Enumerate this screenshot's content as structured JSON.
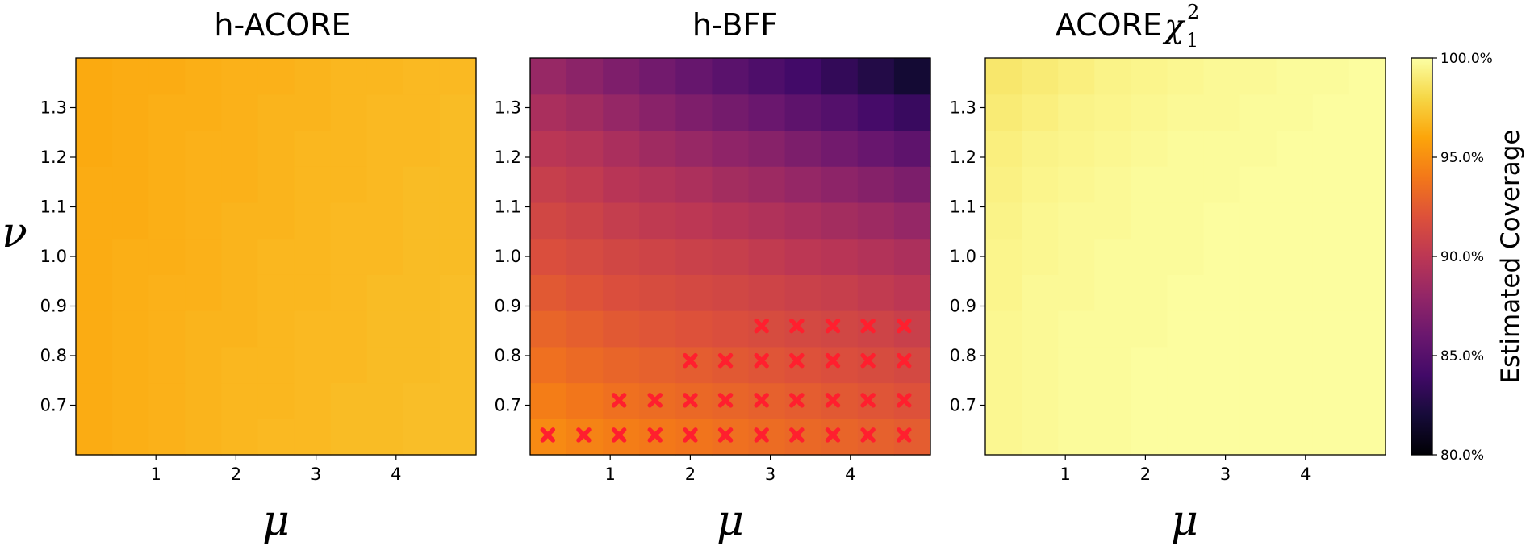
{
  "figure": {
    "ylabel": "ν",
    "xlabel": "μ",
    "colorbar": {
      "label": "Estimated Coverage",
      "ticks": [
        "80.0%",
        "85.0%",
        "90.0%",
        "95.0%",
        "100.0%"
      ],
      "range": [
        80,
        100
      ],
      "colormap": "inferno"
    }
  },
  "chart_data": [
    {
      "type": "heatmap",
      "title": "h-ACORE",
      "title_main": "h-ACORE",
      "xlabel": "μ",
      "ylabel": "ν",
      "xlim": [
        0,
        5
      ],
      "ylim": [
        0.6,
        1.4
      ],
      "xticks": [
        1,
        2,
        3,
        4
      ],
      "yticks": [
        0.7,
        0.8,
        0.9,
        1.0,
        1.1,
        1.2,
        1.3
      ],
      "x_centers": [
        0.22,
        0.67,
        1.11,
        1.56,
        2.0,
        2.44,
        2.89,
        3.33,
        3.78,
        4.22,
        4.67
      ],
      "y_centers": [
        0.64,
        0.71,
        0.79,
        0.86,
        0.93,
        1.0,
        1.07,
        1.14,
        1.21,
        1.29,
        1.36
      ],
      "values": [
        [
          96.3,
          96.4,
          96.5,
          96.6,
          96.7,
          96.8,
          96.8,
          96.9,
          96.9,
          97.0,
          97.0
        ],
        [
          96.3,
          96.4,
          96.5,
          96.6,
          96.7,
          96.7,
          96.8,
          96.9,
          96.9,
          97.0,
          97.0
        ],
        [
          96.3,
          96.4,
          96.5,
          96.6,
          96.7,
          96.7,
          96.8,
          96.8,
          96.9,
          96.9,
          97.0
        ],
        [
          96.3,
          96.4,
          96.5,
          96.6,
          96.6,
          96.7,
          96.8,
          96.8,
          96.9,
          96.9,
          97.0
        ],
        [
          96.3,
          96.4,
          96.5,
          96.5,
          96.6,
          96.7,
          96.7,
          96.8,
          96.9,
          96.9,
          97.0
        ],
        [
          96.3,
          96.4,
          96.4,
          96.5,
          96.6,
          96.7,
          96.7,
          96.8,
          96.8,
          96.9,
          96.9
        ],
        [
          96.3,
          96.3,
          96.4,
          96.5,
          96.6,
          96.6,
          96.7,
          96.8,
          96.8,
          96.9,
          96.9
        ],
        [
          96.3,
          96.3,
          96.4,
          96.5,
          96.5,
          96.6,
          96.7,
          96.7,
          96.8,
          96.9,
          96.9
        ],
        [
          96.2,
          96.3,
          96.4,
          96.5,
          96.5,
          96.6,
          96.7,
          96.7,
          96.8,
          96.8,
          96.9
        ],
        [
          96.2,
          96.3,
          96.4,
          96.4,
          96.5,
          96.6,
          96.6,
          96.7,
          96.8,
          96.8,
          96.9
        ],
        [
          96.2,
          96.3,
          96.3,
          96.4,
          96.5,
          96.5,
          96.6,
          96.7,
          96.7,
          96.8,
          96.8
        ]
      ],
      "markers": []
    },
    {
      "type": "heatmap",
      "title": "h-BFF",
      "title_main": "h-BFF",
      "xlabel": "μ",
      "ylabel": "ν",
      "xlim": [
        0,
        5
      ],
      "ylim": [
        0.6,
        1.4
      ],
      "xticks": [
        1,
        2,
        3,
        4
      ],
      "yticks": [
        0.7,
        0.8,
        0.9,
        1.0,
        1.1,
        1.2,
        1.3
      ],
      "x_centers": [
        0.22,
        0.67,
        1.11,
        1.56,
        2.0,
        2.44,
        2.89,
        3.33,
        3.78,
        4.22,
        4.67
      ],
      "y_centers": [
        0.64,
        0.71,
        0.79,
        0.86,
        0.93,
        1.0,
        1.07,
        1.14,
        1.21,
        1.29,
        1.36
      ],
      "values": [
        [
          94.8,
          94.5,
          94.2,
          94.0,
          93.8,
          93.6,
          93.4,
          93.2,
          93.0,
          92.8,
          92.6
        ],
        [
          94.2,
          93.9,
          93.6,
          93.4,
          93.2,
          93.0,
          92.8,
          92.6,
          92.4,
          92.2,
          92.0
        ],
        [
          93.6,
          93.3,
          93.0,
          92.8,
          92.6,
          92.4,
          92.2,
          92.0,
          91.8,
          91.6,
          91.4
        ],
        [
          93.0,
          92.7,
          92.4,
          92.2,
          92.0,
          91.8,
          91.6,
          91.4,
          91.2,
          91.0,
          90.7
        ],
        [
          92.4,
          92.1,
          91.8,
          91.6,
          91.4,
          91.2,
          91.0,
          90.8,
          90.6,
          90.3,
          90.0
        ],
        [
          91.8,
          91.5,
          91.2,
          91.0,
          90.8,
          90.6,
          90.3,
          90.0,
          89.8,
          89.5,
          89.2
        ],
        [
          91.2,
          90.9,
          90.5,
          90.2,
          90.0,
          89.7,
          89.4,
          89.1,
          88.8,
          88.5,
          88.1
        ],
        [
          90.6,
          90.3,
          89.8,
          89.5,
          89.2,
          88.8,
          88.5,
          88.1,
          87.7,
          87.3,
          86.9
        ],
        [
          89.9,
          89.6,
          89.1,
          88.6,
          88.2,
          87.8,
          87.4,
          86.9,
          86.4,
          85.9,
          85.4
        ],
        [
          89.1,
          88.7,
          88.1,
          87.5,
          87.0,
          86.5,
          86.0,
          85.4,
          84.9,
          84.2,
          83.6
        ],
        [
          88.2,
          87.6,
          87.0,
          86.4,
          85.8,
          85.2,
          84.6,
          84.0,
          83.3,
          82.6,
          81.8
        ]
      ],
      "markers": [
        {
          "mu": 2.89,
          "nu": 0.86
        },
        {
          "mu": 3.33,
          "nu": 0.86
        },
        {
          "mu": 3.78,
          "nu": 0.86
        },
        {
          "mu": 4.22,
          "nu": 0.86
        },
        {
          "mu": 4.67,
          "nu": 0.86
        },
        {
          "mu": 2.0,
          "nu": 0.79
        },
        {
          "mu": 2.44,
          "nu": 0.79
        },
        {
          "mu": 2.89,
          "nu": 0.79
        },
        {
          "mu": 3.33,
          "nu": 0.79
        },
        {
          "mu": 3.78,
          "nu": 0.79
        },
        {
          "mu": 4.22,
          "nu": 0.79
        },
        {
          "mu": 4.67,
          "nu": 0.79
        },
        {
          "mu": 1.11,
          "nu": 0.71
        },
        {
          "mu": 1.56,
          "nu": 0.71
        },
        {
          "mu": 2.0,
          "nu": 0.71
        },
        {
          "mu": 2.44,
          "nu": 0.71
        },
        {
          "mu": 2.89,
          "nu": 0.71
        },
        {
          "mu": 3.33,
          "nu": 0.71
        },
        {
          "mu": 3.78,
          "nu": 0.71
        },
        {
          "mu": 4.22,
          "nu": 0.71
        },
        {
          "mu": 4.67,
          "nu": 0.71
        },
        {
          "mu": 0.22,
          "nu": 0.64
        },
        {
          "mu": 0.67,
          "nu": 0.64
        },
        {
          "mu": 1.11,
          "nu": 0.64
        },
        {
          "mu": 1.56,
          "nu": 0.64
        },
        {
          "mu": 2.0,
          "nu": 0.64
        },
        {
          "mu": 2.44,
          "nu": 0.64
        },
        {
          "mu": 2.89,
          "nu": 0.64
        },
        {
          "mu": 3.33,
          "nu": 0.64
        },
        {
          "mu": 3.78,
          "nu": 0.64
        },
        {
          "mu": 4.22,
          "nu": 0.64
        },
        {
          "mu": 4.67,
          "nu": 0.64
        }
      ]
    },
    {
      "type": "heatmap",
      "title": "ACORE χ²₁",
      "title_main": "ACORE",
      "title_symbol": "χ",
      "title_sup": "2",
      "title_sub": "1",
      "xlabel": "μ",
      "ylabel": "ν",
      "xlim": [
        0,
        5
      ],
      "ylim": [
        0.6,
        1.4
      ],
      "xticks": [
        1,
        2,
        3,
        4
      ],
      "yticks": [
        0.7,
        0.8,
        0.9,
        1.0,
        1.1,
        1.2,
        1.3
      ],
      "x_centers": [
        0.22,
        0.67,
        1.11,
        1.56,
        2.0,
        2.44,
        2.89,
        3.33,
        3.78,
        4.22,
        4.67
      ],
      "y_centers": [
        0.64,
        0.71,
        0.79,
        0.86,
        0.93,
        1.0,
        1.07,
        1.14,
        1.21,
        1.29,
        1.36
      ],
      "values": [
        [
          99.6,
          99.7,
          99.8,
          99.8,
          99.9,
          99.9,
          99.9,
          99.9,
          99.9,
          99.9,
          99.9
        ],
        [
          99.6,
          99.7,
          99.8,
          99.8,
          99.9,
          99.9,
          99.9,
          99.9,
          99.9,
          99.9,
          99.9
        ],
        [
          99.6,
          99.7,
          99.8,
          99.8,
          99.9,
          99.9,
          99.9,
          99.9,
          99.9,
          99.9,
          99.9
        ],
        [
          99.6,
          99.7,
          99.8,
          99.8,
          99.8,
          99.9,
          99.9,
          99.9,
          99.9,
          99.9,
          99.9
        ],
        [
          99.5,
          99.7,
          99.7,
          99.8,
          99.8,
          99.9,
          99.9,
          99.9,
          99.9,
          99.9,
          99.9
        ],
        [
          99.5,
          99.6,
          99.7,
          99.8,
          99.8,
          99.8,
          99.9,
          99.9,
          99.9,
          99.9,
          99.9
        ],
        [
          99.4,
          99.6,
          99.7,
          99.7,
          99.8,
          99.8,
          99.9,
          99.9,
          99.9,
          99.9,
          99.9
        ],
        [
          99.3,
          99.5,
          99.6,
          99.7,
          99.8,
          99.8,
          99.8,
          99.9,
          99.9,
          99.9,
          99.9
        ],
        [
          99.2,
          99.4,
          99.5,
          99.6,
          99.7,
          99.8,
          99.8,
          99.8,
          99.9,
          99.9,
          99.9
        ],
        [
          99.0,
          99.2,
          99.4,
          99.5,
          99.6,
          99.7,
          99.7,
          99.8,
          99.8,
          99.9,
          99.9
        ],
        [
          98.8,
          99.0,
          99.2,
          99.4,
          99.5,
          99.6,
          99.7,
          99.7,
          99.8,
          99.8,
          99.9
        ]
      ],
      "markers": []
    }
  ]
}
